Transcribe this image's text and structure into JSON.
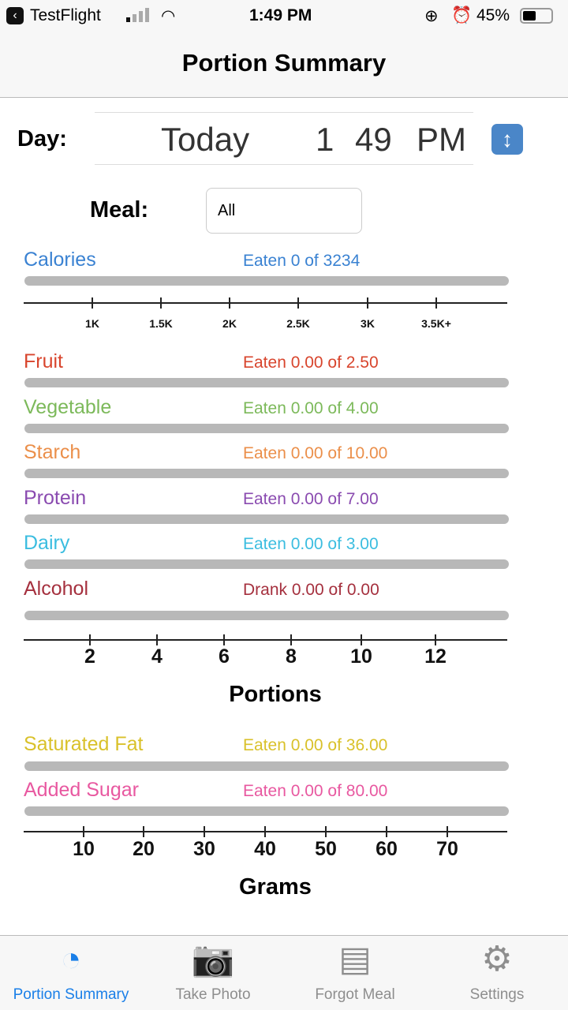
{
  "status": {
    "back_app": "TestFlight",
    "time": "1:49 PM",
    "battery": "45%"
  },
  "nav": {
    "title": "Portion Summary"
  },
  "day": {
    "label": "Day:",
    "picker_day": "Today",
    "picker_hour": "1",
    "picker_minute": "49",
    "picker_ampm": "PM",
    "stepper_icon": "up-down-arrow-icon"
  },
  "meal": {
    "label": "Meal:",
    "value": "All"
  },
  "calories": {
    "label": "Calories",
    "status": "Eaten 0 of 3234",
    "color": "#3a82d2",
    "progress": 0,
    "ticks": [
      "1K",
      "1.5K",
      "2K",
      "2.5K",
      "3K",
      "3.5K+"
    ]
  },
  "portions": {
    "rows": [
      {
        "label": "Fruit",
        "status": "Eaten 0.00 of 2.50",
        "color": "#d8452d",
        "progress": 0
      },
      {
        "label": "Vegetable",
        "status": "Eaten 0.00 of 4.00",
        "color": "#7cb95a",
        "progress": 0
      },
      {
        "label": "Starch",
        "status": "Eaten 0.00 of 10.00",
        "color": "#eb8f4a",
        "progress": 0
      },
      {
        "label": "Protein",
        "status": "Eaten 0.00 of 7.00",
        "color": "#8a4bb0",
        "progress": 0
      },
      {
        "label": "Dairy",
        "status": "Eaten 0.00 of 3.00",
        "color": "#3bbde0",
        "progress": 0
      },
      {
        "label": "Alcohol",
        "status": "Drank 0.00 of 0.00",
        "color": "#a5303e",
        "progress": 0
      }
    ],
    "ticks": [
      "2",
      "4",
      "6",
      "8",
      "10",
      "12"
    ],
    "axis_title": "Portions"
  },
  "grams": {
    "rows": [
      {
        "label": "Saturated Fat",
        "status": "Eaten 0.00 of 36.00",
        "color": "#d9c12a",
        "progress": 0
      },
      {
        "label": "Added Sugar",
        "status": "Eaten 0.00 of 80.00",
        "color": "#e858a0",
        "progress": 0
      }
    ],
    "ticks": [
      "10",
      "20",
      "30",
      "40",
      "50",
      "60",
      "70"
    ],
    "axis_title": "Grams"
  },
  "tabs": [
    {
      "label": "Portion Summary",
      "icon": "pie-chart-icon",
      "active": true
    },
    {
      "label": "Take Photo",
      "icon": "camera-icon"
    },
    {
      "label": "Forgot Meal",
      "icon": "document-icon"
    },
    {
      "label": "Settings",
      "icon": "gear-icon"
    }
  ],
  "accent": "#1a7fe8"
}
